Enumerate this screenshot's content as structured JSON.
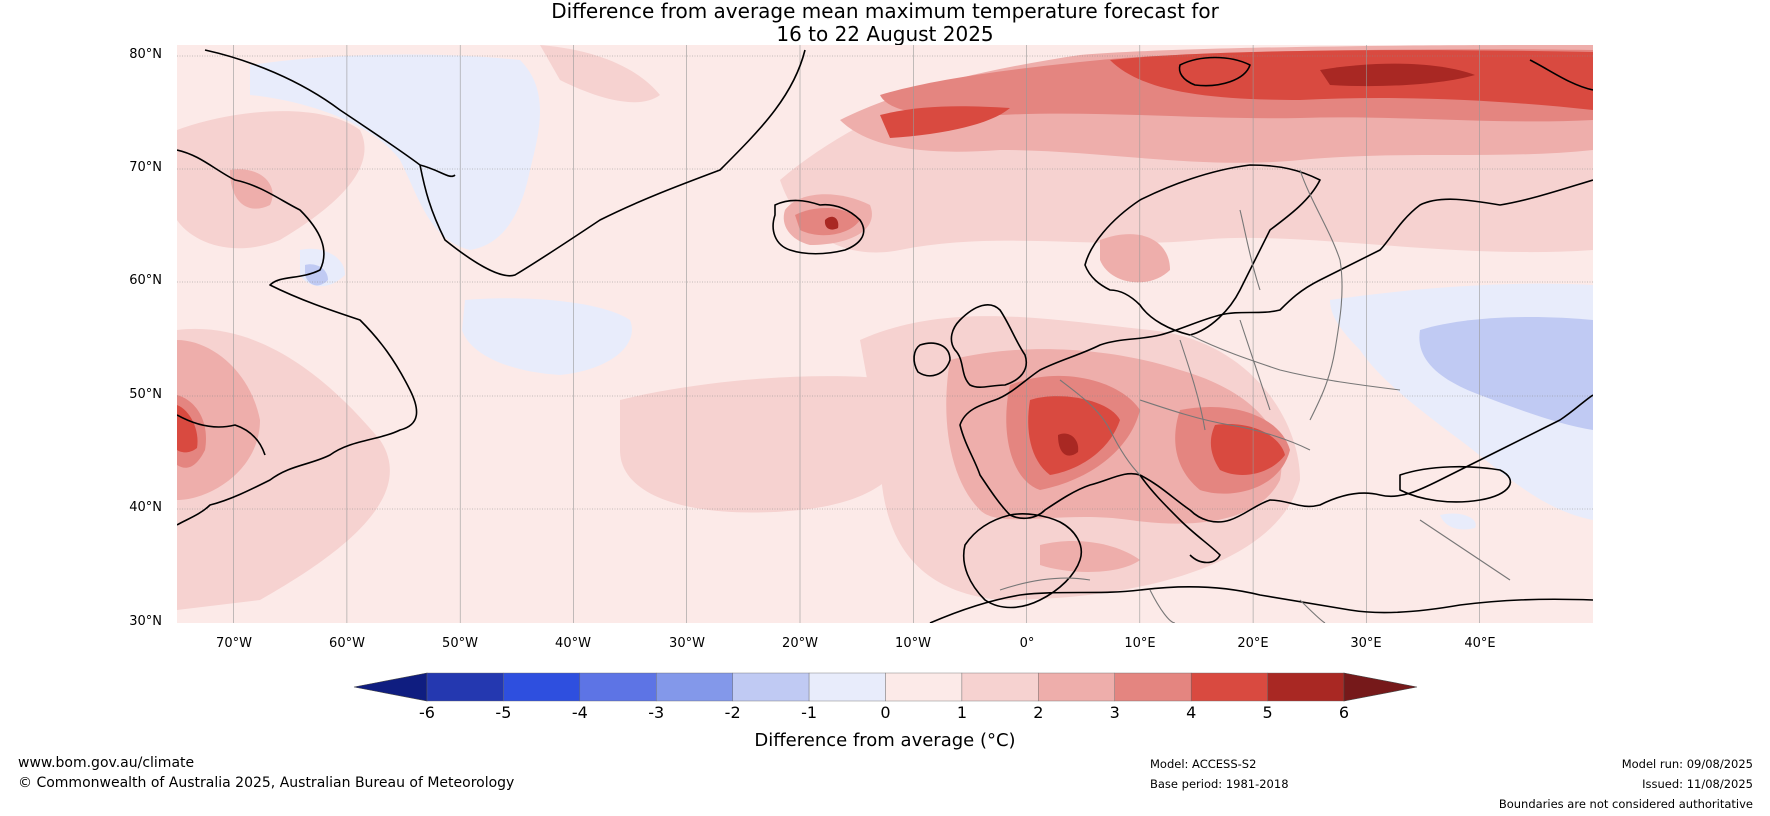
{
  "title": {
    "line1": "Difference from average mean maximum temperature forecast for",
    "line2": "16 to 22 August 2025"
  },
  "map": {
    "lat_labels": [
      "80°N",
      "70°N",
      "60°N",
      "50°N",
      "40°N",
      "30°N"
    ],
    "lon_labels": [
      "70°W",
      "60°W",
      "50°W",
      "40°W",
      "30°W",
      "20°W",
      "10°W",
      "0°",
      "10°E",
      "20°E",
      "30°E",
      "40°E"
    ],
    "lon_range": [
      -75,
      50
    ],
    "lat_range": [
      30,
      81
    ],
    "graticule": true,
    "anomaly_regions": [
      {
        "name": "Western Europe / France",
        "anomaly_class": "4 to 5"
      },
      {
        "name": "Central France core",
        "anomaly_class": "5 to 6"
      },
      {
        "name": "Balkans / Hungary",
        "anomaly_class": "4 to 5"
      },
      {
        "name": "Iceland",
        "anomaly_class": "3 to 5"
      },
      {
        "name": "Svalbard / Barents Sea",
        "anomaly_class": "4 to 6"
      },
      {
        "name": "Central Atlantic",
        "anomaly_class": "1 to 2"
      },
      {
        "name": "Greenland ice sheet",
        "anomaly_class": "-1 to 0"
      },
      {
        "name": "Western Russia",
        "anomaly_class": "-2 to -1"
      }
    ]
  },
  "colorbar": {
    "ticks": [
      "-6",
      "-5",
      "-4",
      "-3",
      "-2",
      "-1",
      "0",
      "1",
      "2",
      "3",
      "4",
      "5",
      "6"
    ],
    "colors": [
      "#0f1d80",
      "#2438b0",
      "#2e4fdf",
      "#5d74e5",
      "#8398ea",
      "#c0caf3",
      "#e8ecfb",
      "#fceae8",
      "#f6d2d0",
      "#eeaeab",
      "#e48580",
      "#d94a40",
      "#a92823",
      "#76191a"
    ],
    "label": "Difference from average (°C)"
  },
  "footer": {
    "website": "www.bom.gov.au/climate",
    "copyright": "© Commonwealth of Australia 2025, Australian Bureau of Meteorology",
    "model": "Model: ACCESS-S2",
    "base_period": "Base period: 1981-2018",
    "model_run": "Model run: 09/08/2025",
    "issued": "Issued: 11/08/2025",
    "disclaimer": "Boundaries are not considered authoritative"
  }
}
